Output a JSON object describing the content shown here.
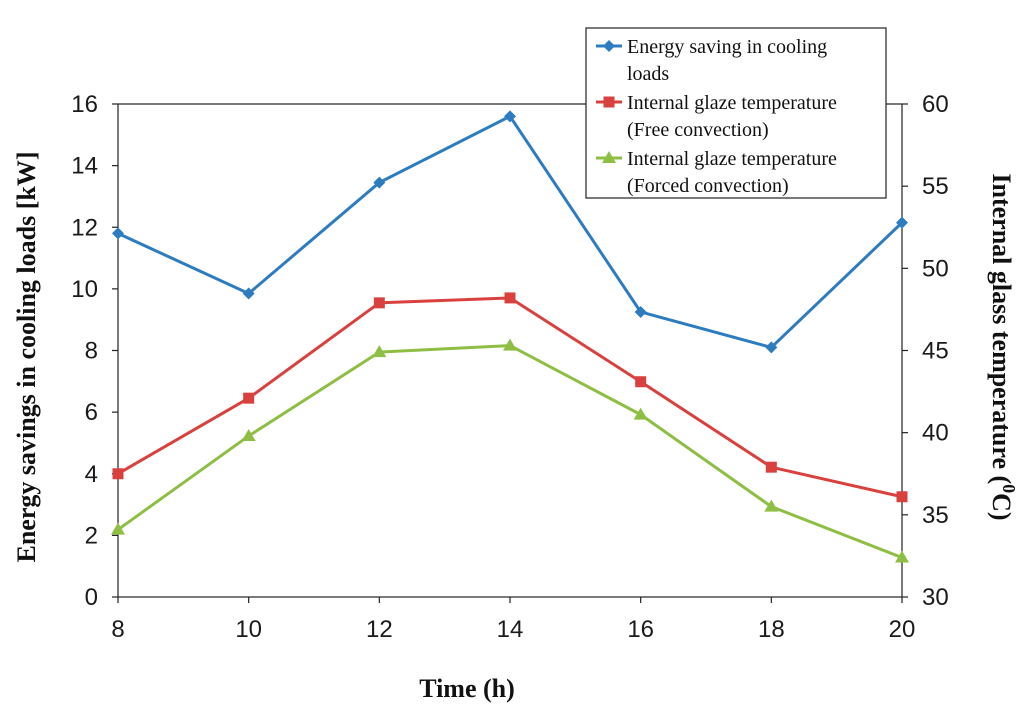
{
  "chart_data": {
    "type": "line",
    "x": [
      8,
      10,
      12,
      14,
      16,
      18,
      20
    ],
    "xlim": [
      8,
      20
    ],
    "xticks": [
      "8",
      "10",
      "12",
      "14",
      "16",
      "18",
      "20"
    ],
    "xlabel": "Time (h)",
    "ylabel_left": "Energy savings in cooling loads [kW]",
    "ylim_left": [
      0,
      16
    ],
    "yticks_left": [
      "0",
      "2",
      "4",
      "6",
      "8",
      "10",
      "12",
      "14",
      "16"
    ],
    "ylabel_right": "Internal glass temperature (",
    "ylabel_right_sup": "0",
    "ylabel_right_unit": "C)",
    "ylim_right": [
      30,
      60
    ],
    "yticks_right": [
      "30",
      "35",
      "40",
      "45",
      "50",
      "55",
      "60"
    ],
    "grid": false,
    "legend_position": "top-right",
    "series": [
      {
        "name": "Energy saving in cooling loads",
        "legend_lines": [
          "Energy saving in cooling",
          "loads"
        ],
        "axis": "left",
        "color": "#2e7cc0",
        "marker": "diamond",
        "values": [
          11.8,
          9.85,
          13.45,
          15.6,
          9.25,
          8.1,
          12.15
        ]
      },
      {
        "name": "Internal glaze temperature (Free convection)",
        "legend_lines": [
          "Internal glaze temperature",
          "(Free convection)"
        ],
        "axis": "right",
        "color": "#d9413f",
        "marker": "square",
        "values": [
          37.5,
          42.1,
          47.9,
          48.2,
          43.1,
          37.9,
          36.1
        ]
      },
      {
        "name": "Internal glaze temperature (Forced convection)",
        "legend_lines": [
          "Internal glaze temperature",
          "(Forced convection)"
        ],
        "axis": "right",
        "color": "#8fbe45",
        "marker": "triangle",
        "values": [
          34.1,
          39.8,
          44.9,
          45.3,
          41.1,
          35.5,
          32.4
        ]
      }
    ]
  }
}
